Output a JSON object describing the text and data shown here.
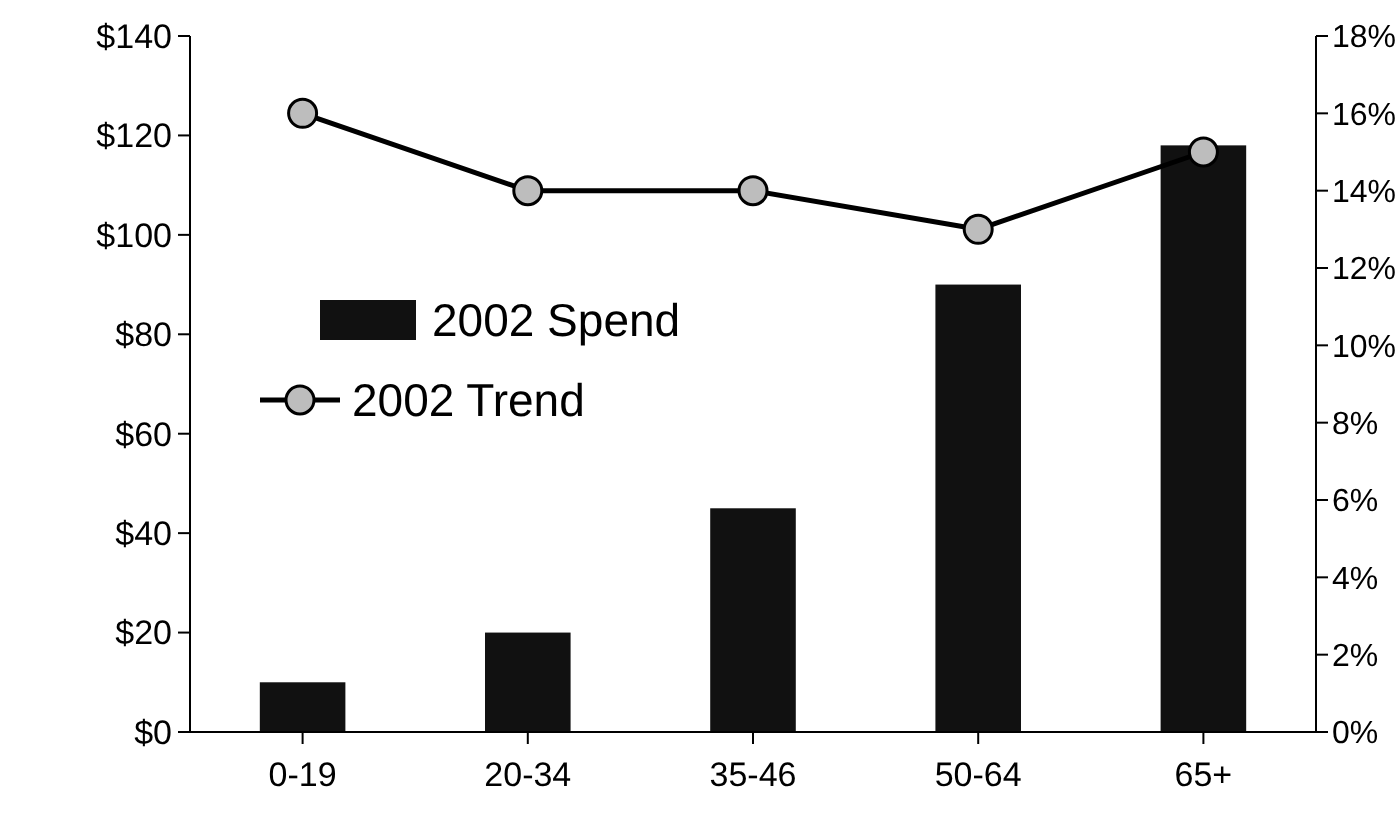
{
  "chart_data": {
    "type": "bar",
    "categories": [
      "0-19",
      "20-34",
      "35-46",
      "50-64",
      "65+"
    ],
    "series": [
      {
        "name": "2002 Spend",
        "color": "#111111",
        "values": [
          10,
          20,
          45,
          90,
          118
        ]
      },
      {
        "name": "2002 Trend",
        "type": "line",
        "axis": "y2",
        "color": "#000000",
        "values": [
          16,
          14,
          14,
          13,
          15
        ],
        "marker": "circle"
      }
    ],
    "ylim": [
      0,
      140
    ],
    "yticks": [
      {
        "value": 0,
        "label": "$0"
      },
      {
        "value": 20,
        "label": "$20"
      },
      {
        "value": 40,
        "label": "$40"
      },
      {
        "value": 60,
        "label": "$60"
      },
      {
        "value": 80,
        "label": "$80"
      },
      {
        "value": 100,
        "label": "$100"
      },
      {
        "value": 120,
        "label": "$120"
      },
      {
        "value": 140,
        "label": "$140"
      }
    ],
    "y2lim": [
      0,
      18
    ],
    "y2ticks": [
      {
        "value": 0,
        "label": "0%"
      },
      {
        "value": 2,
        "label": "2%"
      },
      {
        "value": 4,
        "label": "4%"
      },
      {
        "value": 6,
        "label": "6%"
      },
      {
        "value": 8,
        "label": "8%"
      },
      {
        "value": 10,
        "label": "10%"
      },
      {
        "value": 12,
        "label": "12%"
      },
      {
        "value": 14,
        "label": "14%"
      },
      {
        "value": 16,
        "label": "16%"
      },
      {
        "value": 18,
        "label": "18%"
      }
    ],
    "legend": "left",
    "grid": false
  }
}
